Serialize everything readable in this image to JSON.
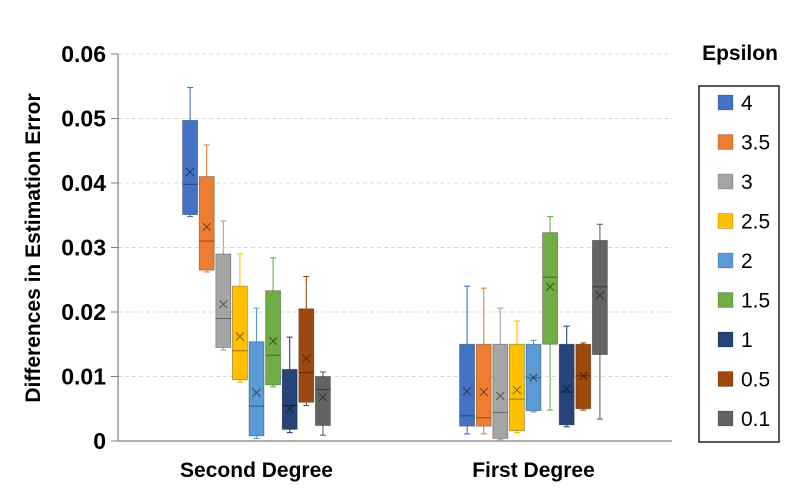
{
  "chart_data": {
    "type": "box",
    "ylabel": "Differences in Estimation Error",
    "ylim": [
      0,
      0.06
    ],
    "yticks": [
      "0",
      "0.01",
      "0.02",
      "0.03",
      "0.04",
      "0.05",
      "0.06"
    ],
    "categories": [
      "Second Degree",
      "First Degree"
    ],
    "grid": true,
    "legend": {
      "title": "Epsilon",
      "placement": "right"
    },
    "series": [
      {
        "name": "4",
        "color": "#4472c4",
        "boxes": [
          {
            "min": 0.0348,
            "q1": 0.0351,
            "median": 0.0398,
            "mean": 0.0417,
            "q3": 0.0497,
            "max": 0.0548
          },
          {
            "min": 0.0011,
            "q1": 0.0023,
            "median": 0.0039,
            "mean": 0.0077,
            "q3": 0.015,
            "max": 0.024
          }
        ]
      },
      {
        "name": "3.5",
        "color": "#ed7d31",
        "boxes": [
          {
            "min": 0.0262,
            "q1": 0.0265,
            "median": 0.031,
            "mean": 0.0332,
            "q3": 0.041,
            "max": 0.0459
          },
          {
            "min": 0.0011,
            "q1": 0.0023,
            "median": 0.0036,
            "mean": 0.0076,
            "q3": 0.015,
            "max": 0.0237
          }
        ]
      },
      {
        "name": "3",
        "color": "#a5a5a5",
        "boxes": [
          {
            "min": 0.0141,
            "q1": 0.0145,
            "median": 0.019,
            "mean": 0.0212,
            "q3": 0.029,
            "max": 0.0341
          },
          {
            "min": 0.0002,
            "q1": 0.0004,
            "median": 0.0044,
            "mean": 0.007,
            "q3": 0.015,
            "max": 0.0206
          }
        ]
      },
      {
        "name": "2.5",
        "color": "#ffc000",
        "boxes": [
          {
            "min": 0.0091,
            "q1": 0.0095,
            "median": 0.014,
            "mean": 0.0162,
            "q3": 0.024,
            "max": 0.029
          },
          {
            "min": 0.0013,
            "q1": 0.0016,
            "median": 0.0065,
            "mean": 0.0079,
            "q3": 0.015,
            "max": 0.0186
          }
        ]
      },
      {
        "name": "2",
        "color": "#5b9bd5",
        "boxes": [
          {
            "min": 0.0004,
            "q1": 0.0008,
            "median": 0.0054,
            "mean": 0.0075,
            "q3": 0.0154,
            "max": 0.0206
          },
          {
            "min": 0.0045,
            "q1": 0.0047,
            "median": 0.0098,
            "mean": 0.0098,
            "q3": 0.015,
            "max": 0.0156
          }
        ]
      },
      {
        "name": "1.5",
        "color": "#70ad47",
        "boxes": [
          {
            "min": 0.0084,
            "q1": 0.0087,
            "median": 0.0133,
            "mean": 0.0155,
            "q3": 0.0233,
            "max": 0.0284
          },
          {
            "min": 0.0048,
            "q1": 0.015,
            "median": 0.0254,
            "mean": 0.0239,
            "q3": 0.0323,
            "max": 0.0348
          }
        ]
      },
      {
        "name": "1",
        "color": "#264478",
        "boxes": [
          {
            "min": 0.0013,
            "q1": 0.0018,
            "median": 0.0055,
            "mean": 0.005,
            "q3": 0.0111,
            "max": 0.0161
          },
          {
            "min": 0.0022,
            "q1": 0.0025,
            "median": 0.0076,
            "mean": 0.0081,
            "q3": 0.015,
            "max": 0.0178
          }
        ]
      },
      {
        "name": "0.5",
        "color": "#9e480e",
        "boxes": [
          {
            "min": 0.0055,
            "q1": 0.006,
            "median": 0.0106,
            "mean": 0.0128,
            "q3": 0.0205,
            "max": 0.0255
          },
          {
            "min": 0.0048,
            "q1": 0.005,
            "median": 0.0101,
            "mean": 0.0101,
            "q3": 0.015,
            "max": 0.0152
          }
        ]
      },
      {
        "name": "0.1",
        "color": "#636363",
        "boxes": [
          {
            "min": 0.0009,
            "q1": 0.0024,
            "median": 0.008,
            "mean": 0.0068,
            "q3": 0.01,
            "max": 0.0107
          },
          {
            "min": 0.0034,
            "q1": 0.0134,
            "median": 0.0239,
            "mean": 0.0226,
            "q3": 0.0311,
            "max": 0.0336
          }
        ]
      }
    ]
  }
}
